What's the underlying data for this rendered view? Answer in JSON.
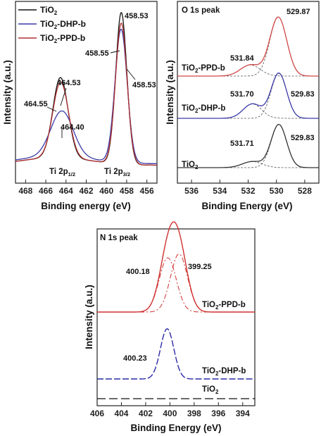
{
  "chart_data": [
    {
      "id": "ti2p",
      "type": "line",
      "title": "",
      "xlabel": "Binding energy (eV)",
      "ylabel": "Intensity (a.u.)",
      "xlim": [
        469,
        455
      ],
      "xticks": [
        "468",
        "466",
        "464",
        "462",
        "460",
        "458",
        "456"
      ],
      "xtick_values": [
        468,
        466,
        464,
        462,
        460,
        458,
        456
      ],
      "legend": [
        {
          "name": "TiO2",
          "color": "#111111"
        },
        {
          "name": "TiO2-DHP-b",
          "color": "#3a3aa8"
        },
        {
          "name": "TiO2-PPD-b",
          "color": "#b03030"
        }
      ],
      "legend_labels": {
        "tio2_main": "TiO",
        "tio2_sub": "2",
        "dhp_main": "TiO",
        "dhp_sub": "2",
        "dhp_tail": "-DHP-b",
        "ppd_main": "TiO",
        "ppd_sub": "2",
        "ppd_tail": "-PPD-b"
      },
      "series": [
        {
          "name": "TiO2",
          "color": "#111111",
          "peaks": [
            [
              464.55,
              0.53,
              0.75
            ],
            [
              458.53,
              1.0,
              0.55
            ]
          ],
          "baseline": 0.02
        },
        {
          "name": "TiO2-DHP-b",
          "color": "#3a3aa8",
          "peaks": [
            [
              464.4,
              0.3,
              1.1
            ],
            [
              458.55,
              0.88,
              0.6
            ]
          ],
          "baseline": 0.03
        },
        {
          "name": "TiO2-PPD-b",
          "color": "#b03030",
          "peaks": [
            [
              464.53,
              0.5,
              0.78
            ],
            [
              458.53,
              0.93,
              0.57
            ]
          ],
          "baseline": 0.02
        }
      ],
      "annotations": [
        "458.53",
        "458.55",
        "458.53",
        "464.55",
        "464.53",
        "464.40"
      ],
      "peak_labels": {
        "p1_main": "Ti 2p",
        "p1_sub": "1/2",
        "p2_main": "Ti 2p",
        "p2_sub": "3/2"
      }
    },
    {
      "id": "o1s",
      "type": "line",
      "title": "O 1s peak",
      "xlabel": "Binding Energy (eV)",
      "ylabel": "Intensity (a.u.)",
      "xlim": [
        537,
        527
      ],
      "xticks": [
        "536",
        "534",
        "532",
        "530",
        "528"
      ],
      "xtick_values": [
        536,
        534,
        532,
        530,
        528
      ],
      "series": [
        {
          "name": "TiO2-PPD-b",
          "color": "#d04848",
          "offset": 2.0,
          "peaks": [
            [
              529.87,
              0.95,
              0.6
            ],
            [
              531.84,
              0.18,
              0.7
            ]
          ]
        },
        {
          "name": "TiO2-DHP-b",
          "color": "#3a3aa8",
          "offset": 1.0,
          "peaks": [
            [
              529.83,
              0.78,
              0.55
            ],
            [
              531.7,
              0.25,
              0.65
            ]
          ]
        },
        {
          "name": "TiO2",
          "color": "#333333",
          "offset": 0.0,
          "peaks": [
            [
              529.83,
              0.85,
              0.55
            ],
            [
              531.71,
              0.12,
              0.7
            ]
          ]
        }
      ],
      "annotations": [
        "529.87",
        "531.84",
        "531.70",
        "529.83",
        "531.71",
        "529.83"
      ],
      "series_labels": {
        "ppd_main": "TiO",
        "ppd_sub": "2",
        "ppd_tail": "-PPD-b",
        "dhp_main": "TiO",
        "dhp_sub": "2",
        "dhp_tail": "-DHP-b",
        "tio2_main": "TiO",
        "tio2_sub": "2"
      }
    },
    {
      "id": "n1s",
      "type": "line",
      "title": "N 1s peak",
      "xlabel": "Binding Energy (eV)",
      "ylabel": "Intensity (a.u.)",
      "xlim": [
        406,
        393
      ],
      "xticks": [
        "406",
        "404",
        "402",
        "400",
        "398",
        "396",
        "394"
      ],
      "xtick_values": [
        406,
        404,
        402,
        400,
        398,
        396,
        394
      ],
      "series": [
        {
          "name": "TiO2-PPD-b",
          "color": "#d03030",
          "offset": 2.0,
          "peaks": [
            [
              400.18,
              0.7,
              0.7
            ],
            [
              399.25,
              0.75,
              0.7
            ]
          ]
        },
        {
          "name": "TiO2-DHP-b",
          "color": "#2a2aa8",
          "offset": 1.0,
          "peaks": [
            [
              400.23,
              0.75,
              0.55
            ]
          ]
        },
        {
          "name": "TiO2",
          "color": "#111111",
          "offset": 0.0,
          "peaks": []
        }
      ],
      "annotations": [
        "400.18",
        "399.25",
        "400.23"
      ],
      "series_labels": {
        "ppd_main": "TiO",
        "ppd_sub": "2",
        "ppd_tail": "-PPD-b",
        "dhp_main": "TiO",
        "dhp_sub": "2",
        "dhp_tail": "-DHP-b",
        "tio2_main": "TiO",
        "tio2_sub": "2"
      }
    }
  ]
}
